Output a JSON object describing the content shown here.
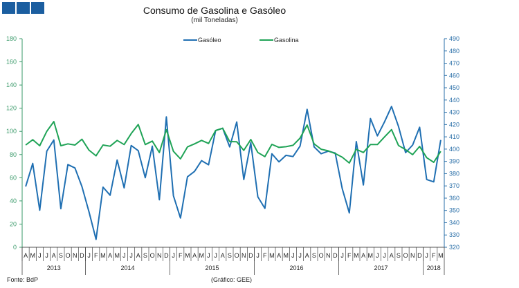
{
  "logo_label": "GEE",
  "colors": {
    "gasoleo": "#1f6fb2",
    "gasolina": "#1fa356",
    "left_axis": "#3a9a6a",
    "right_axis": "#2a6fa8",
    "logo": "#1b5ea0"
  },
  "footer": {
    "source": "Fonte: BdP",
    "credit": "(Gráfico: GEE)"
  },
  "chart_data": {
    "type": "line",
    "title": "Consumo de Gasolina e Gasóleo",
    "subtitle": "(mil Toneladas)",
    "legend_position": "top-center",
    "grid": false,
    "months": [
      "A",
      "M",
      "J",
      "J",
      "A",
      "S",
      "O",
      "N",
      "D",
      "J",
      "F",
      "M",
      "A",
      "M",
      "J",
      "J",
      "A",
      "S",
      "O",
      "N",
      "D",
      "J",
      "F",
      "M",
      "A",
      "M",
      "J",
      "J",
      "A",
      "S",
      "O",
      "N",
      "D",
      "J",
      "F",
      "M",
      "A",
      "M",
      "J",
      "J",
      "A",
      "S",
      "O",
      "N",
      "D",
      "J",
      "F",
      "M",
      "A",
      "M",
      "J",
      "J",
      "A",
      "S",
      "O",
      "N",
      "D",
      "J",
      "F",
      "M"
    ],
    "years": [
      {
        "label": "2013",
        "months": 9
      },
      {
        "label": "2014",
        "months": 12
      },
      {
        "label": "2015",
        "months": 12
      },
      {
        "label": "2016",
        "months": 12
      },
      {
        "label": "2017",
        "months": 12
      },
      {
        "label": "2018",
        "months": 3
      }
    ],
    "left_axis": {
      "min": 0,
      "max": 180,
      "ticks": [
        0,
        20,
        40,
        60,
        80,
        100,
        120,
        140,
        160,
        180
      ]
    },
    "right_axis": {
      "min": 320,
      "max": 490,
      "ticks": [
        320,
        330,
        340,
        350,
        360,
        370,
        380,
        390,
        400,
        410,
        420,
        430,
        440,
        450,
        460,
        470,
        480,
        490
      ]
    },
    "series": [
      {
        "name": "Gasóleo",
        "axis": "right",
        "values": [
          369.5,
          388.3,
          350.2,
          398.3,
          407.4,
          351.4,
          387.4,
          384.6,
          369.5,
          348.9,
          326.4,
          369,
          362.4,
          391.1,
          368.4,
          402.9,
          398.7,
          376.7,
          402.4,
          358.7,
          426.2,
          362,
          343.8,
          377.4,
          381.8,
          390.6,
          387.2,
          415.2,
          417,
          401.8,
          422.1,
          375.2,
          405.2,
          361.1,
          351.7,
          396.2,
          389.6,
          394.9,
          393.9,
          402.4,
          432.4,
          401.8,
          396.2,
          398.3,
          396.8,
          367.7,
          348,
          406.1,
          370.8,
          424.9,
          410.8,
          422.1,
          434.7,
          418.4,
          397.1,
          403.3,
          417.8,
          375.2,
          373.3,
          407.4
        ]
      },
      {
        "name": "Gasolina",
        "axis": "left",
        "values": [
          88.2,
          92.8,
          87.6,
          100,
          108.5,
          87.6,
          89.2,
          88.2,
          93.2,
          83.8,
          78.9,
          88.2,
          87.2,
          92.2,
          88.6,
          98.1,
          105.9,
          88.6,
          91.6,
          81.8,
          101.5,
          82.8,
          76.3,
          86.6,
          89.2,
          92.2,
          89.6,
          100.7,
          102.7,
          91.2,
          91,
          83.6,
          93,
          81.8,
          78.2,
          88.8,
          86.2,
          86.8,
          88,
          94.2,
          105.5,
          89.2,
          84.6,
          83.2,
          80.9,
          77.7,
          72.7,
          84.6,
          81.8,
          88.6,
          88.6,
          95.2,
          101.5,
          87.8,
          84.2,
          79.9,
          87,
          77.3,
          73.3,
          82.8
        ]
      }
    ]
  }
}
